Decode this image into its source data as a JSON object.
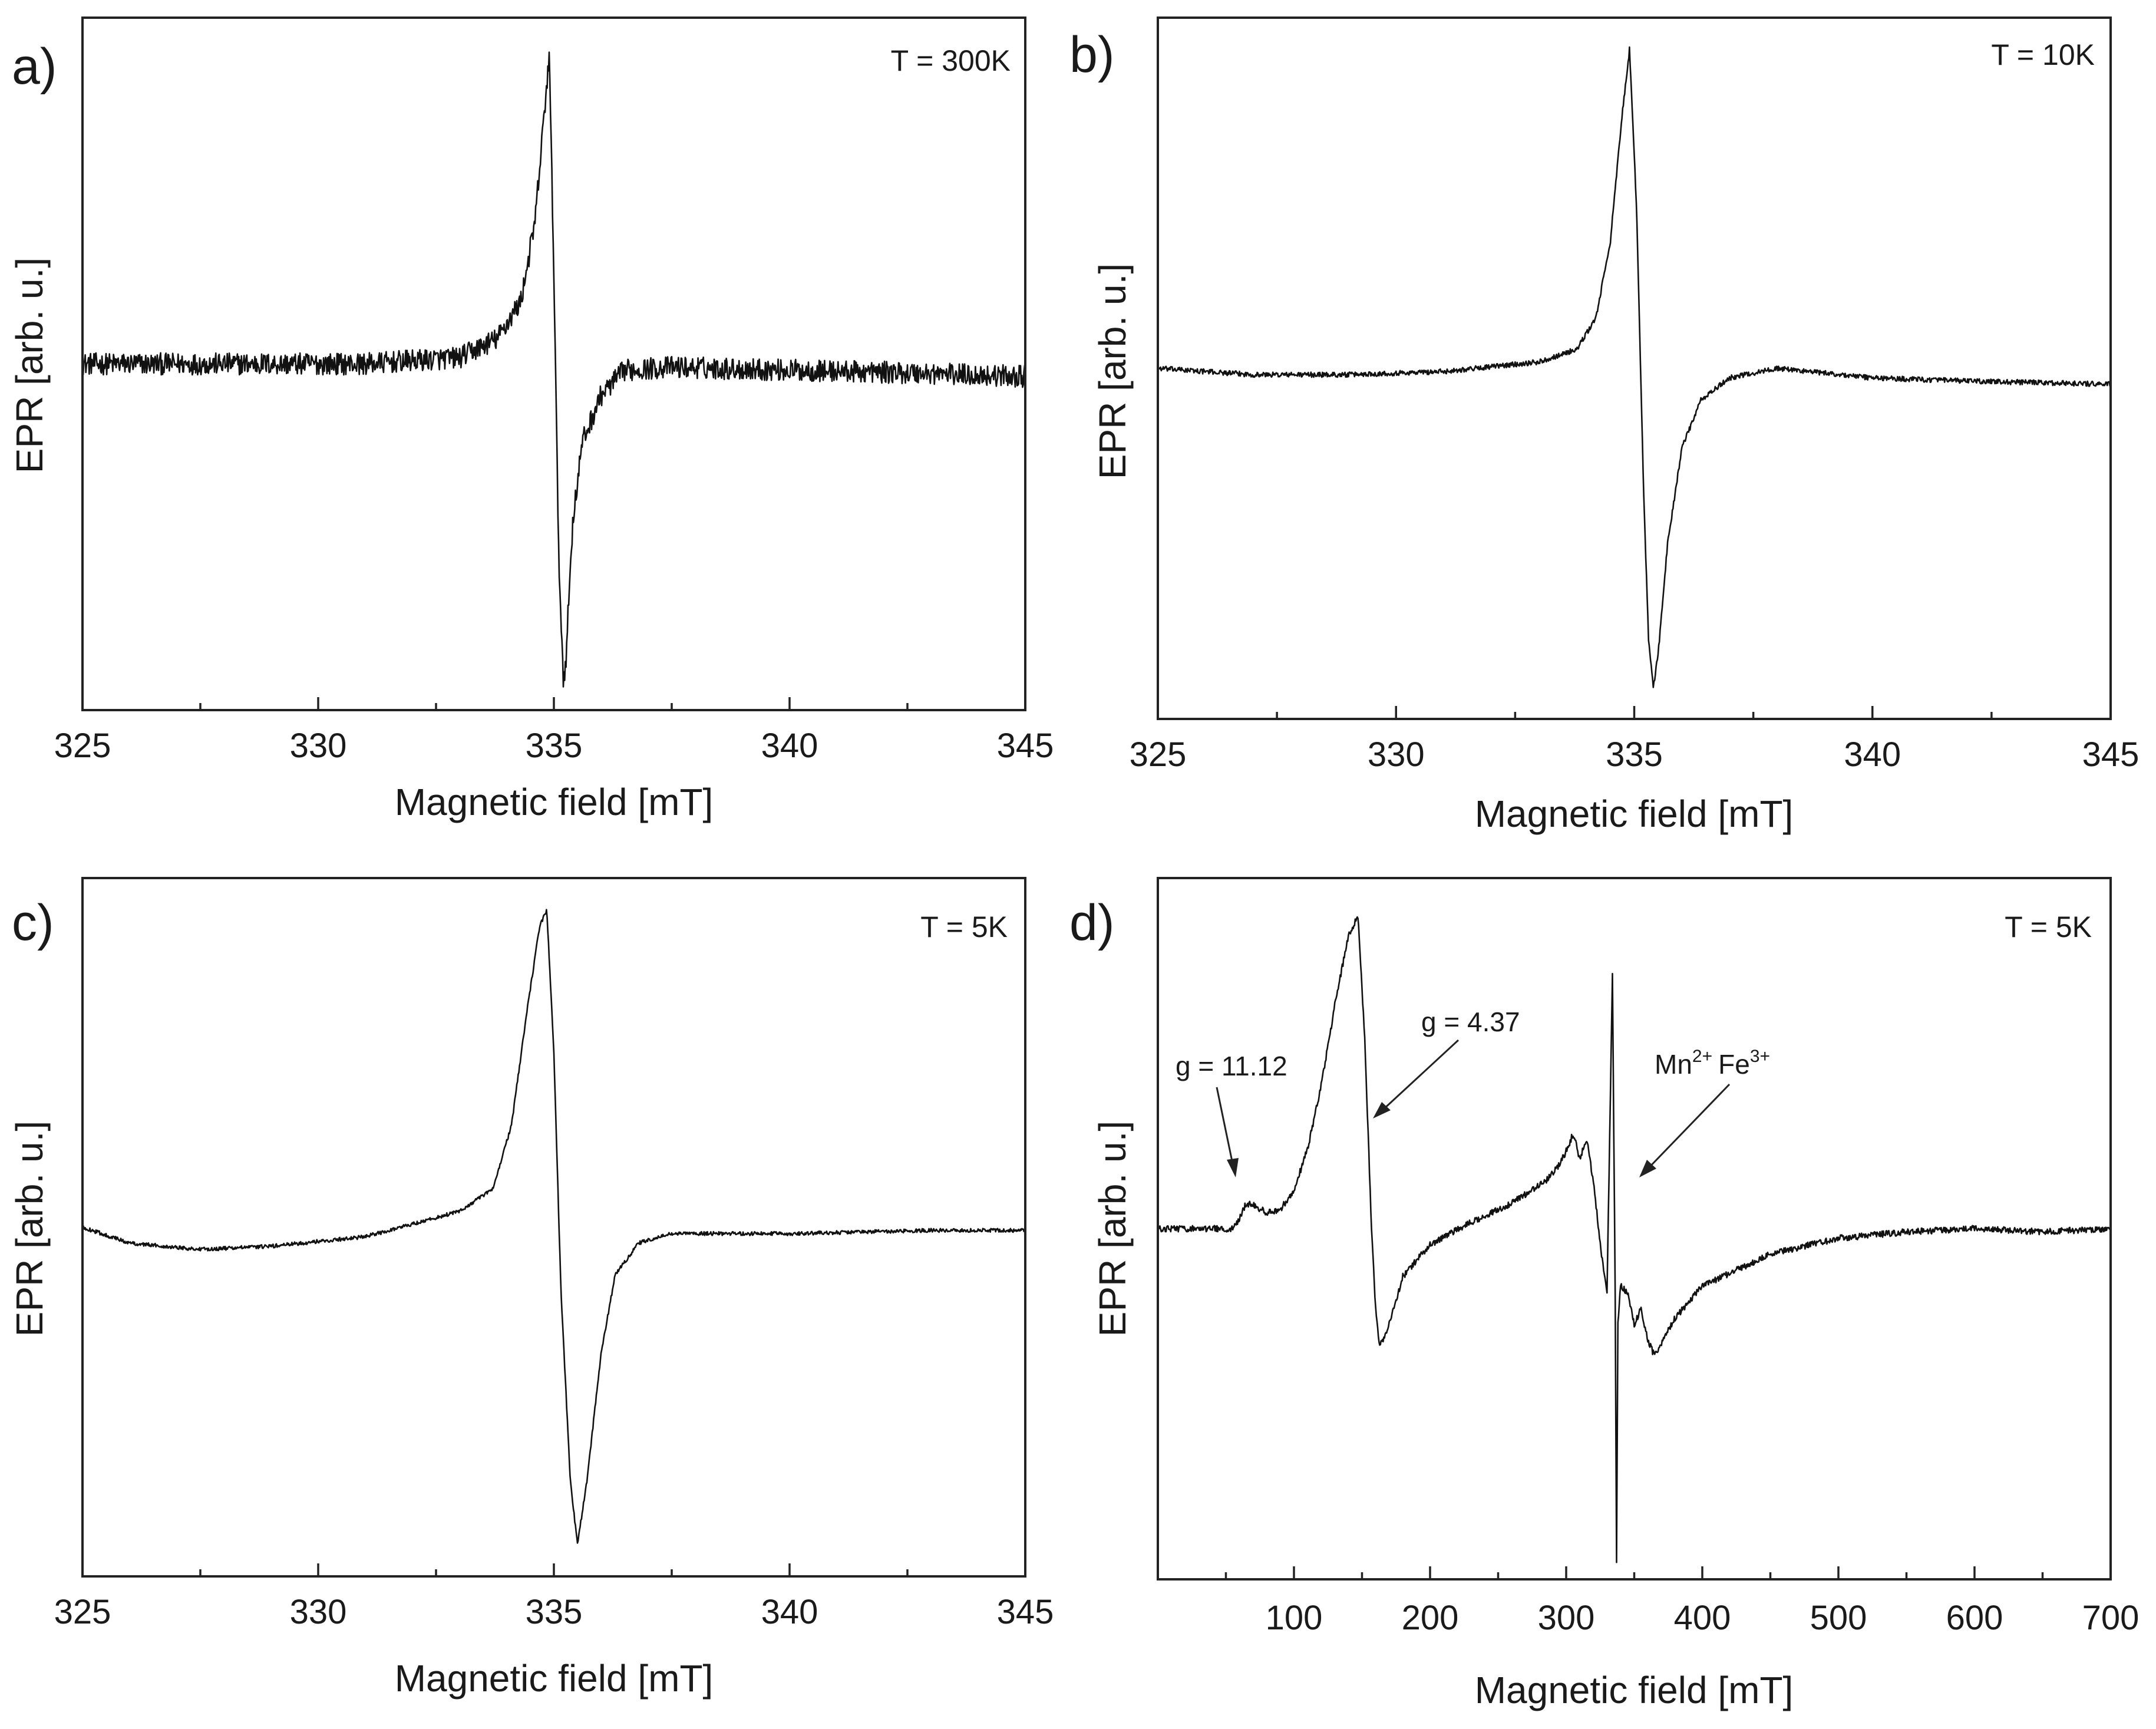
{
  "chart_data": [
    {
      "type": "line",
      "panel": "a)",
      "annotation_temperature": "T = 300K",
      "xlabel": "Magnetic field [mT]",
      "ylabel": "EPR [arb. u.]",
      "xlim": [
        325,
        345
      ],
      "xticks": [
        325,
        330,
        335,
        340,
        345
      ],
      "xtick_labels": [
        "325",
        "330",
        "335",
        "340",
        "345"
      ],
      "ylim": [
        -1.1,
        1.1
      ],
      "noise": 0.035,
      "series": [
        {
          "name": "EPR signal",
          "x": [
            325,
            328,
            331,
            333,
            333.8,
            334.3,
            334.6,
            334.8,
            334.9,
            335.0,
            335.1,
            335.2,
            335.25,
            335.4,
            335.6,
            336.0,
            336.5,
            337.5,
            340,
            343,
            345
          ],
          "y": [
            0.0,
            0.0,
            0.0,
            0.02,
            0.08,
            0.2,
            0.45,
            0.8,
            0.98,
            0.3,
            -0.6,
            -1.0,
            -0.95,
            -0.5,
            -0.25,
            -0.1,
            -0.02,
            -0.01,
            -0.02,
            -0.03,
            -0.04
          ]
        }
      ]
    },
    {
      "type": "line",
      "panel": "b)",
      "annotation_temperature": "T = 10K",
      "xlabel": "Magnetic field [mT]",
      "ylabel": "EPR [arb. u.]",
      "xlim": [
        325,
        345
      ],
      "xticks": [
        325,
        330,
        335,
        340,
        345
      ],
      "xtick_labels": [
        "325",
        "330",
        "335",
        "340",
        "345"
      ],
      "ylim": [
        -1.1,
        1.1
      ],
      "noise": 0.008,
      "series": [
        {
          "name": "EPR signal",
          "x": [
            325,
            327,
            329,
            331,
            333,
            333.8,
            334.2,
            334.5,
            334.75,
            334.9,
            335.05,
            335.2,
            335.3,
            335.4,
            335.5,
            335.7,
            336.0,
            336.4,
            337.0,
            338.0,
            340,
            342,
            345
          ],
          "y": [
            0.0,
            -0.02,
            -0.02,
            -0.01,
            0.02,
            0.06,
            0.16,
            0.4,
            0.8,
            1.0,
            0.5,
            -0.4,
            -0.85,
            -1.0,
            -0.9,
            -0.55,
            -0.25,
            -0.1,
            -0.03,
            0.0,
            -0.03,
            -0.04,
            -0.05
          ]
        }
      ]
    },
    {
      "type": "line",
      "panel": "c)",
      "annotation_temperature": "T = 5K",
      "xlabel": "Magnetic field [mT]",
      "ylabel": "EPR [arb. u.]",
      "xlim": [
        325,
        345
      ],
      "xticks": [
        325,
        330,
        335,
        340,
        345
      ],
      "xtick_labels": [
        "325",
        "330",
        "335",
        "340",
        "345"
      ],
      "ylim": [
        -1.1,
        1.1
      ],
      "noise": 0.006,
      "series": [
        {
          "name": "EPR signal",
          "x": [
            325,
            326,
            327.5,
            329,
            331,
            333,
            333.7,
            334.1,
            334.4,
            334.7,
            334.85,
            335.0,
            335.15,
            335.35,
            335.5,
            335.7,
            336.0,
            336.3,
            336.8,
            337.5,
            340,
            343,
            345
          ],
          "y": [
            0.0,
            -0.05,
            -0.07,
            -0.06,
            -0.03,
            0.05,
            0.12,
            0.32,
            0.65,
            0.95,
            1.0,
            0.55,
            -0.2,
            -0.8,
            -1.0,
            -0.8,
            -0.4,
            -0.15,
            -0.05,
            -0.02,
            -0.02,
            -0.01,
            -0.01
          ]
        }
      ]
    },
    {
      "type": "line",
      "panel": "d)",
      "annotation_temperature": "T = 5K",
      "xlabel": "Magnetic field [mT]",
      "ylabel": "EPR [arb. u.]",
      "xlim": [
        0,
        700
      ],
      "xticks": [
        100,
        200,
        300,
        400,
        500,
        600,
        700
      ],
      "xtick_labels": [
        "100",
        "200",
        "300",
        "400",
        "500",
        "600",
        "700"
      ],
      "ylim": [
        -1.1,
        1.1
      ],
      "noise": 0.01,
      "series": [
        {
          "name": "EPR signal",
          "x": [
            0,
            30,
            55,
            60,
            65,
            72,
            80,
            90,
            100,
            110,
            120,
            130,
            140,
            147,
            152,
            157,
            160,
            163,
            170,
            180,
            200,
            230,
            260,
            285,
            295,
            302,
            305,
            310,
            315,
            320,
            325,
            330,
            334,
            336,
            337,
            338,
            340,
            345,
            350,
            355,
            360,
            365,
            380,
            400,
            450,
            500,
            550,
            600,
            650,
            700
          ],
          "y": [
            0.0,
            0.0,
            0.0,
            0.03,
            0.08,
            0.07,
            0.05,
            0.06,
            0.12,
            0.25,
            0.45,
            0.7,
            0.92,
            0.98,
            0.6,
            0.0,
            -0.25,
            -0.37,
            -0.3,
            -0.15,
            -0.05,
            0.02,
            0.08,
            0.15,
            0.2,
            0.26,
            0.3,
            0.22,
            0.28,
            0.15,
            -0.05,
            -0.2,
            0.8,
            -0.2,
            -1.05,
            -0.3,
            -0.18,
            -0.2,
            -0.3,
            -0.25,
            -0.35,
            -0.4,
            -0.28,
            -0.18,
            -0.08,
            -0.03,
            -0.01,
            0.0,
            -0.01,
            0.0
          ]
        }
      ],
      "annotations": [
        {
          "text": "g = 11.12",
          "x": 62
        },
        {
          "text": "g = 4.37",
          "x": 155
        },
        {
          "text": "Mn",
          "sup": "2+",
          "text2": "Fe",
          "sup2": "3+",
          "x": 340
        }
      ]
    }
  ]
}
